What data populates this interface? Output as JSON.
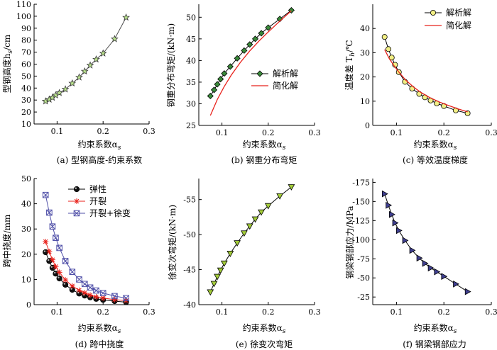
{
  "chart_data": [
    {
      "id": "a",
      "type": "line",
      "caption": "(a) 型钢高度-约束系数",
      "xlabel_main": "约束系数α",
      "xlabel_sub": "s",
      "ylabel_main": "型钢高度h",
      "ylabel_sub": "s",
      "ylabel_unit": "/cm",
      "xlim": [
        0.05,
        0.3
      ],
      "ylim": [
        10,
        110
      ],
      "xticks": [
        0.1,
        0.2,
        0.3
      ],
      "xticklabels": [
        "0.1",
        "0.2",
        "0.3"
      ],
      "yticks": [
        10,
        20,
        30,
        40,
        50,
        60,
        70,
        80,
        90,
        100,
        110
      ],
      "yticklabels": [
        "10",
        "20",
        "30",
        "40",
        "50",
        "60",
        "70",
        "80",
        "90",
        "100",
        "110"
      ],
      "grid": false,
      "legend": "none",
      "series": [
        {
          "color": "#4d4d4d",
          "marker": "star",
          "marker_fill": "#b8e08c",
          "x": [
            0.075,
            0.083,
            0.09,
            0.097,
            0.105,
            0.118,
            0.133,
            0.148,
            0.16,
            0.172,
            0.185,
            0.2,
            0.225,
            0.25
          ],
          "y": [
            29,
            30.5,
            32,
            34,
            36,
            39,
            44,
            49,
            54,
            59,
            64,
            69,
            81,
            99
          ]
        }
      ]
    },
    {
      "id": "b",
      "type": "line",
      "caption": "(b) 钢重分布弯矩",
      "xlabel_main": "约束系数α",
      "xlabel_sub": "s",
      "ylabel_main": "钢重分布弯矩/(kN·m)",
      "ylabel_sub": "",
      "ylabel_unit": "",
      "xlim": [
        0.05,
        0.3
      ],
      "ylim": [
        25,
        53
      ],
      "xticks": [
        0.1,
        0.2,
        0.3
      ],
      "xticklabels": [
        "0.1",
        "0.2",
        "0.3"
      ],
      "yticks": [
        25,
        30,
        35,
        40,
        45,
        50
      ],
      "yticklabels": [
        "25",
        "30",
        "35",
        "40",
        "45",
        "50"
      ],
      "grid": false,
      "legend": "center-right",
      "series": [
        {
          "name": "解析解",
          "color": "#000000",
          "marker": "diamond",
          "marker_fill": "#3a8a3a",
          "x": [
            0.075,
            0.083,
            0.09,
            0.097,
            0.105,
            0.118,
            0.133,
            0.148,
            0.16,
            0.172,
            0.185,
            0.2,
            0.225,
            0.25
          ],
          "y": [
            31.8,
            33.2,
            34.5,
            35.7,
            37,
            38.6,
            40.5,
            42.3,
            43.7,
            45,
            46.3,
            47.6,
            49.6,
            51.6
          ]
        },
        {
          "name": "简化解",
          "color": "#e8211b",
          "marker": "none",
          "x": [
            0.075,
            0.09,
            0.105,
            0.12,
            0.14,
            0.16,
            0.18,
            0.2,
            0.225,
            0.25
          ],
          "y": [
            27.3,
            31,
            34,
            36.6,
            39.6,
            42.2,
            44.5,
            46.6,
            49.1,
            51.5
          ]
        }
      ]
    },
    {
      "id": "c",
      "type": "line",
      "caption": "(c) 等效温度梯度",
      "xlabel_main": "约束系数α",
      "xlabel_sub": "s",
      "ylabel_main": "温度差 T",
      "ylabel_sub": "h",
      "ylabel_unit": "/℃",
      "xlim": [
        0.05,
        0.3
      ],
      "ylim": [
        0,
        50
      ],
      "xticks": [
        0.1,
        0.2,
        0.3
      ],
      "xticklabels": [
        "0.1",
        "0.2",
        "0.3"
      ],
      "yticks": [
        0,
        10,
        20,
        30,
        40
      ],
      "yticklabels": [
        "0",
        "10",
        "20",
        "30",
        "40"
      ],
      "grid": false,
      "legend": "top-right",
      "series": [
        {
          "name": "解析解",
          "color": "#000000",
          "marker": "circle",
          "marker_fill": "#f2ef85",
          "x": [
            0.075,
            0.083,
            0.09,
            0.097,
            0.105,
            0.118,
            0.133,
            0.148,
            0.16,
            0.172,
            0.185,
            0.2,
            0.225,
            0.25
          ],
          "y": [
            36.5,
            31.5,
            28,
            25,
            22,
            18,
            15.2,
            13,
            11.6,
            10.3,
            9.1,
            8,
            6.2,
            5
          ]
        },
        {
          "name": "简化解",
          "color": "#e8211b",
          "marker": "none",
          "x": [
            0.075,
            0.085,
            0.095,
            0.105,
            0.12,
            0.135,
            0.15,
            0.17,
            0.19,
            0.21,
            0.23,
            0.25
          ],
          "y": [
            31.3,
            27.5,
            24.6,
            22,
            18.6,
            16,
            13.8,
            11.5,
            9.7,
            8.2,
            6.8,
            5.6
          ]
        }
      ]
    },
    {
      "id": "d",
      "type": "line",
      "caption": "(d) 跨中挠度",
      "xlabel_main": "约束系数α",
      "xlabel_sub": "s",
      "ylabel_main": "跨中挠度/mm",
      "ylabel_sub": "",
      "ylabel_unit": "",
      "xlim": [
        0.05,
        0.3
      ],
      "ylim": [
        0,
        50
      ],
      "xticks": [
        0.1,
        0.2,
        0.3
      ],
      "xticklabels": [
        "0.1",
        "0.2",
        "0.3"
      ],
      "yticks": [
        0,
        10,
        20,
        30,
        40,
        50
      ],
      "yticklabels": [
        "0",
        "10",
        "20",
        "30",
        "40",
        "50"
      ],
      "grid": false,
      "legend": "top-right",
      "series": [
        {
          "name": "弹性",
          "color": "#000000",
          "marker": "ball",
          "marker_fill": "#111111",
          "x": [
            0.075,
            0.083,
            0.09,
            0.097,
            0.105,
            0.118,
            0.133,
            0.148,
            0.16,
            0.172,
            0.185,
            0.2,
            0.225,
            0.25
          ],
          "y": [
            20.8,
            17.3,
            14.6,
            12.3,
            10.4,
            7.9,
            5.9,
            4.4,
            3.6,
            2.9,
            2.3,
            1.9,
            1.4,
            1.0
          ]
        },
        {
          "name": "开裂",
          "color": "#e8211b",
          "marker": "asterisk",
          "marker_fill": "none",
          "x": [
            0.075,
            0.083,
            0.09,
            0.097,
            0.105,
            0.118,
            0.133,
            0.148,
            0.16,
            0.172,
            0.185,
            0.2,
            0.225,
            0.25
          ],
          "y": [
            25,
            21,
            17.8,
            15.1,
            12.8,
            9.8,
            7.4,
            5.7,
            4.7,
            3.8,
            3.1,
            2.6,
            2.0,
            1.6
          ]
        },
        {
          "name": "开裂+徐变",
          "color": "#5050a8",
          "marker": "xbox",
          "marker_fill": "none",
          "x": [
            0.075,
            0.083,
            0.09,
            0.097,
            0.105,
            0.118,
            0.133,
            0.148,
            0.16,
            0.172,
            0.185,
            0.2,
            0.225,
            0.25
          ],
          "y": [
            43.5,
            36.5,
            31,
            26.5,
            22.5,
            17.3,
            13,
            10,
            8.2,
            6.8,
            5.6,
            4.6,
            3.4,
            2.6
          ]
        }
      ]
    },
    {
      "id": "e",
      "type": "line",
      "caption": "(e) 徐变次弯矩",
      "xlabel_main": "约束系数α",
      "xlabel_sub": "s",
      "ylabel_main": "徐变次弯矩/(kN·m)",
      "ylabel_sub": "",
      "ylabel_unit": "",
      "xlim": [
        0.05,
        0.3
      ],
      "ylim": [
        -40,
        -58
      ],
      "xticks": [
        0.1,
        0.2,
        0.3
      ],
      "xticklabels": [
        "0.1",
        "0.2",
        "0.3"
      ],
      "yticks": [
        -40,
        -45,
        -50,
        -55
      ],
      "yticklabels": [
        "-40",
        "-45",
        "-50",
        "-55"
      ],
      "grid": false,
      "legend": "none",
      "series": [
        {
          "color": "#000000",
          "marker": "triangle-down",
          "marker_fill": "#a3cc3a",
          "x": [
            0.075,
            0.083,
            0.09,
            0.097,
            0.105,
            0.118,
            0.133,
            0.148,
            0.16,
            0.172,
            0.185,
            0.2,
            0.225,
            0.25
          ],
          "y": [
            -41.8,
            -43,
            -44,
            -44.9,
            -45.9,
            -47.3,
            -48.8,
            -50.2,
            -51.2,
            -52.2,
            -53.2,
            -54.1,
            -55.5,
            -56.8
          ]
        }
      ]
    },
    {
      "id": "f",
      "type": "line",
      "caption": "(f) 钢梁钢部应力",
      "xlabel_main": "约束系数α",
      "xlabel_sub": "s",
      "ylabel_main": "钢梁钢部应力/MPa",
      "ylabel_sub": "",
      "ylabel_unit": "",
      "xlim": [
        0.05,
        0.3
      ],
      "ylim": [
        -15,
        -180
      ],
      "xticks": [
        0.1,
        0.2,
        0.3
      ],
      "xticklabels": [
        "0.1",
        "0.2",
        "0.3"
      ],
      "yticks": [
        -25,
        -50,
        -75,
        -100,
        -125,
        -150,
        -175
      ],
      "yticklabels": [
        "-25",
        "-50",
        "-75",
        "-100",
        "-125",
        "-150",
        "-175"
      ],
      "grid": false,
      "legend": "none",
      "series": [
        {
          "color": "#000000",
          "marker": "triangle-right",
          "marker_fill": "#3f3f8f",
          "x": [
            0.075,
            0.083,
            0.09,
            0.097,
            0.105,
            0.118,
            0.133,
            0.148,
            0.16,
            0.172,
            0.185,
            0.2,
            0.225,
            0.25
          ],
          "y": [
            -160,
            -145,
            -133,
            -122,
            -112,
            -99,
            -86,
            -76,
            -69,
            -63,
            -58,
            -52,
            -42,
            -32
          ]
        }
      ]
    }
  ]
}
